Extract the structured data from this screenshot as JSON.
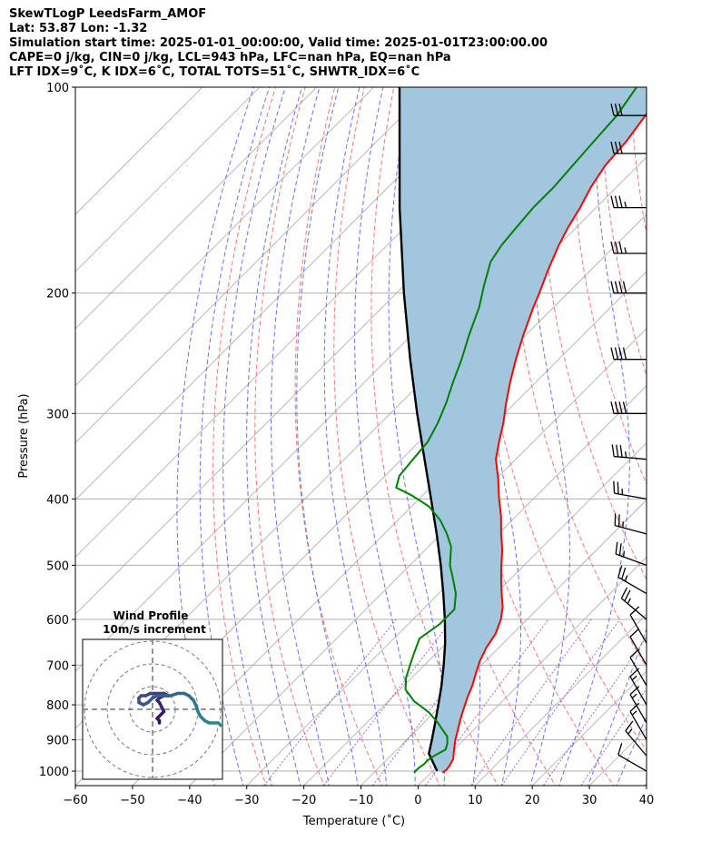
{
  "title_lines": [
    "SkewTLogP LeedsFarm_AMOF",
    "Lat: 53.87   Lon: -1.32",
    "Simulation start time: 2025-01-01_00:00:00, Valid time: 2025-01-01T23:00:00.00",
    "CAPE=0 j/kg, CIN=0 j/kg, LCL=943 hPa, LFC=nan hPa, EQ=nan hPa",
    "LFT IDX=9˚C, K IDX=6˚C, TOTAL TOTS=51˚C, SHWTR_IDX=6˚C"
  ],
  "chart_data": [
    {
      "type": "line",
      "subtype": "skew-t log-p diagram",
      "title": "SkewTLogP LeedsFarm_AMOF",
      "xlabel": "Temperature (˚C)",
      "ylabel": "Pressure (hPa)",
      "xlim": [
        -60,
        40
      ],
      "ylim": [
        1050,
        100
      ],
      "yscale": "log",
      "x_ticks": [
        -60,
        -50,
        -40,
        -30,
        -20,
        -10,
        0,
        10,
        20,
        30,
        40
      ],
      "x_tick_labels": [
        "−60",
        "−50",
        "−40",
        "−30",
        "−20",
        "−10",
        "0",
        "10",
        "20",
        "30",
        "40"
      ],
      "y_ticks": [
        1000,
        900,
        800,
        700,
        600,
        500,
        400,
        300,
        200,
        100
      ],
      "y_tick_labels": [
        "1000",
        "900",
        "800",
        "700",
        "600",
        "500",
        "400",
        "300",
        "200",
        "100"
      ],
      "grid": true,
      "skew": 45,
      "colors": {
        "temperature": "#ff0000",
        "dewpoint": "#008000",
        "parcel": "#000000",
        "shading": "#a3c6df",
        "dry_adiabats": "#ff6666",
        "moist_adiabats": "#4a5bff",
        "mixing_ratio": "#8b44c8",
        "isotherms": "#aaaaaa"
      },
      "series": [
        {
          "name": "",
          "role": "temperature",
          "pressure": [
            1005,
            995,
            980,
            960,
            940,
            920,
            900,
            870,
            840,
            810,
            780,
            750,
            720,
            690,
            660,
            630,
            600,
            575,
            550,
            525,
            500,
            475,
            450,
            425,
            400,
            375,
            350,
            330,
            310,
            290,
            270,
            250,
            230,
            210,
            200,
            185,
            170,
            160,
            150,
            140,
            130,
            120,
            110,
            100
          ],
          "temperature": [
            2,
            2.2,
            2.0,
            1.5,
            0.5,
            -0.5,
            -1.5,
            -2.8,
            -4.2,
            -5.5,
            -6.8,
            -8.0,
            -9.5,
            -11.0,
            -12.2,
            -13.0,
            -14.6,
            -16.5,
            -19.0,
            -21.5,
            -24.0,
            -26.5,
            -29.5,
            -32.5,
            -36.0,
            -39.5,
            -43.5,
            -46.0,
            -48.5,
            -51.5,
            -54.5,
            -57.5,
            -60.5,
            -63.5,
            -65.0,
            -67.5,
            -70.0,
            -71.5,
            -72.8,
            -74.5,
            -75.8,
            -76.3,
            -77.5,
            -79.0
          ]
        },
        {
          "name": "",
          "role": "dewpoint",
          "pressure": [
            1005,
            990,
            975,
            965,
            950,
            930,
            910,
            890,
            870,
            850,
            820,
            790,
            760,
            730,
            700,
            670,
            640,
            610,
            580,
            550,
            520,
            500,
            470,
            450,
            430,
            410,
            395,
            385,
            370,
            350,
            330,
            310,
            290,
            270,
            250,
            230,
            210,
            195,
            180,
            170,
            160,
            150,
            140,
            130,
            120,
            110,
            100
          ],
          "temperature": [
            -3.0,
            -3.0,
            -2.7,
            -2.8,
            -2.4,
            -1.5,
            -2.3,
            -3.5,
            -5.5,
            -7.5,
            -11.0,
            -15.5,
            -19.0,
            -21.0,
            -22.5,
            -24.0,
            -25.5,
            -24.5,
            -24.5,
            -27.0,
            -30.5,
            -33.0,
            -36.0,
            -39.0,
            -42.5,
            -47.0,
            -52.0,
            -56.0,
            -57.5,
            -58.0,
            -58.5,
            -60.0,
            -62.0,
            -64.5,
            -67.0,
            -70.0,
            -73.0,
            -76.0,
            -79.0,
            -80.0,
            -80.5,
            -81.0,
            -81.0,
            -81.5,
            -82.0,
            -82.5,
            -84.0
          ]
        },
        {
          "name": "",
          "role": "parcel",
          "pressure": [
            1000,
            943,
            900,
            850,
            800,
            750,
            700,
            650,
            600,
            550,
            500,
            450,
            400,
            350,
            300,
            250,
            200,
            150,
            100
          ],
          "temperature": [
            0.8,
            -3.7,
            -5.6,
            -8.0,
            -10.6,
            -13.4,
            -16.6,
            -20.2,
            -24.4,
            -29.2,
            -34.6,
            -40.8,
            -47.9,
            -56.0,
            -65.3,
            -76.0,
            -88.7,
            -104.4,
            -125.5
          ]
        }
      ],
      "wind_barbs": {
        "pressure": [
          1000,
          950,
          900,
          850,
          800,
          750,
          700,
          650,
          600,
          550,
          500,
          450,
          400,
          350,
          300,
          250,
          200,
          175,
          150,
          125,
          110
        ],
        "speed_kt": [
          10,
          15,
          15,
          15,
          15,
          10,
          10,
          10,
          25,
          25,
          25,
          25,
          25,
          35,
          40,
          40,
          40,
          35,
          35,
          30,
          30
        ],
        "from_direction_deg": [
          300,
          320,
          330,
          330,
          330,
          330,
          330,
          330,
          310,
          300,
          290,
          285,
          280,
          275,
          270,
          270,
          270,
          270,
          270,
          270,
          270
        ]
      }
    },
    {
      "type": "line",
      "subtype": "hodograph",
      "title": "Wind Profile",
      "subtitle": "10m/s increment",
      "rings_ms": [
        10,
        20,
        30
      ],
      "colors": {
        "start": "#3a0f5a",
        "mid": "#3a528b",
        "end": "#2a8f8a"
      },
      "series": [
        {
          "name": "",
          "u": [
            3,
            3,
            2,
            3,
            4,
            5,
            4,
            3,
            2,
            3,
            5,
            6,
            7,
            5,
            3,
            1,
            -1,
            -3,
            -5,
            -6,
            -6,
            -4,
            -2,
            0,
            2,
            5,
            8,
            11,
            14,
            16,
            17,
            18,
            19,
            20,
            21,
            22,
            23,
            25,
            27,
            29,
            30,
            31
          ],
          "v": [
            6,
            5,
            4,
            3,
            2,
            1,
            -1,
            -3,
            -4,
            -5,
            -6,
            -6,
            -6,
            -7,
            -7,
            -7,
            -7,
            -6,
            -6,
            -5,
            -3,
            -2,
            -3,
            -5,
            -6,
            -6,
            -6,
            -7,
            -7,
            -6,
            -5,
            -4,
            -2,
            1,
            3,
            4,
            5,
            6,
            6,
            6,
            7,
            7
          ]
        }
      ]
    }
  ]
}
